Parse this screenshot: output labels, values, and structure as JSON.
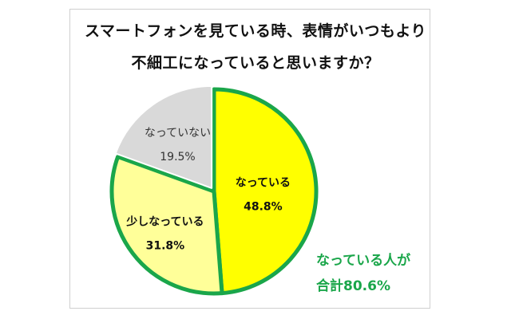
{
  "title_line1": "スマートフォンを見ている時、表情がいつもより",
  "title_line2": "不細工になっていると思いますか？",
  "callout": {
    "line1": "なっている人が",
    "line2": "合計80.6%",
    "color": "#1aa64a"
  },
  "chart_data": {
    "type": "pie",
    "title": "スマートフォンを見ている時、表情がいつもより不細工になっていると思いますか？",
    "slices": [
      {
        "label": "なっている",
        "value": 48.8,
        "value_label": "48.8%",
        "color": "#ffff00",
        "highlight": true
      },
      {
        "label": "少しなっている",
        "value": 31.8,
        "value_label": "31.8%",
        "color": "#ffff99",
        "highlight": true
      },
      {
        "label": "なっていない",
        "value": 19.5,
        "value_label": "19.5%",
        "color": "#d9d9d9",
        "highlight": false
      }
    ],
    "start": "top, clockwise",
    "legend": "none",
    "highlight_color": "#1aa64a",
    "edge_color": "#ffffff"
  }
}
